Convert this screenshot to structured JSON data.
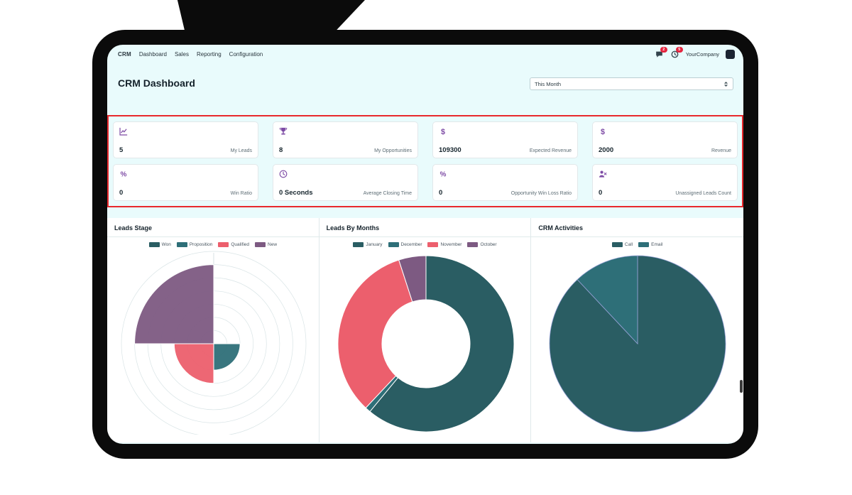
{
  "nav": {
    "brand": "CRM",
    "items": [
      "Dashboard",
      "Sales",
      "Reporting",
      "Configuration"
    ],
    "badges": {
      "messages": "2",
      "activities": "5"
    },
    "company": "YourCompany"
  },
  "header": {
    "title": "CRM Dashboard",
    "period_selector": "This Month"
  },
  "kpis": [
    {
      "icon": "line-chart-icon",
      "value": "5",
      "label": "My Leads"
    },
    {
      "icon": "trophy-icon",
      "value": "8",
      "label": "My Opportunities"
    },
    {
      "icon": "dollar-icon",
      "value": "109300",
      "label": "Expected Revenue"
    },
    {
      "icon": "dollar-icon",
      "value": "2000",
      "label": "Revenue"
    },
    {
      "icon": "percent-icon",
      "value": "0",
      "label": "Win Ratio"
    },
    {
      "icon": "clock-icon",
      "value": "0 Seconds",
      "label": "Average Closing Time"
    },
    {
      "icon": "percent-icon",
      "value": "0",
      "label": "Opportunity Win Loss Ratio"
    },
    {
      "icon": "user-x-icon",
      "value": "0",
      "label": "Unassigned Leads Count"
    }
  ],
  "colors": {
    "accent_purple": "#7d4ba5",
    "annotation_red": "#e8282c",
    "screen_bg": "#e9fbfc",
    "teal_dark": "#2a5d63",
    "teal": "#2e6f78",
    "red_pink": "#ec5f6d",
    "purple": "#7d5a82"
  },
  "chart_data": [
    {
      "type": "polarArea",
      "title": "Leads Stage",
      "labels": [
        "Won",
        "Proposition",
        "Qualified",
        "New"
      ],
      "values": [
        0,
        2,
        3,
        6
      ],
      "colors": [
        "#2a5d63",
        "#2e6f78",
        "#ec5f6d",
        "#7d5a82"
      ],
      "grid": true,
      "legend_position": "top",
      "scale_max": 7
    },
    {
      "type": "doughnut",
      "title": "Leads By Months",
      "labels": [
        "January",
        "December",
        "November",
        "October"
      ],
      "values": [
        61,
        1,
        33,
        5
      ],
      "colors": [
        "#2a5d63",
        "#2e6f78",
        "#ec5f6d",
        "#7d5a82"
      ],
      "grid": false,
      "legend_position": "top"
    },
    {
      "type": "pie",
      "title": "CRM Activities",
      "labels": [
        "Call",
        "Email"
      ],
      "values": [
        88,
        12
      ],
      "colors": [
        "#2a5d63",
        "#2e6f78"
      ],
      "grid": false,
      "legend_position": "top"
    }
  ]
}
